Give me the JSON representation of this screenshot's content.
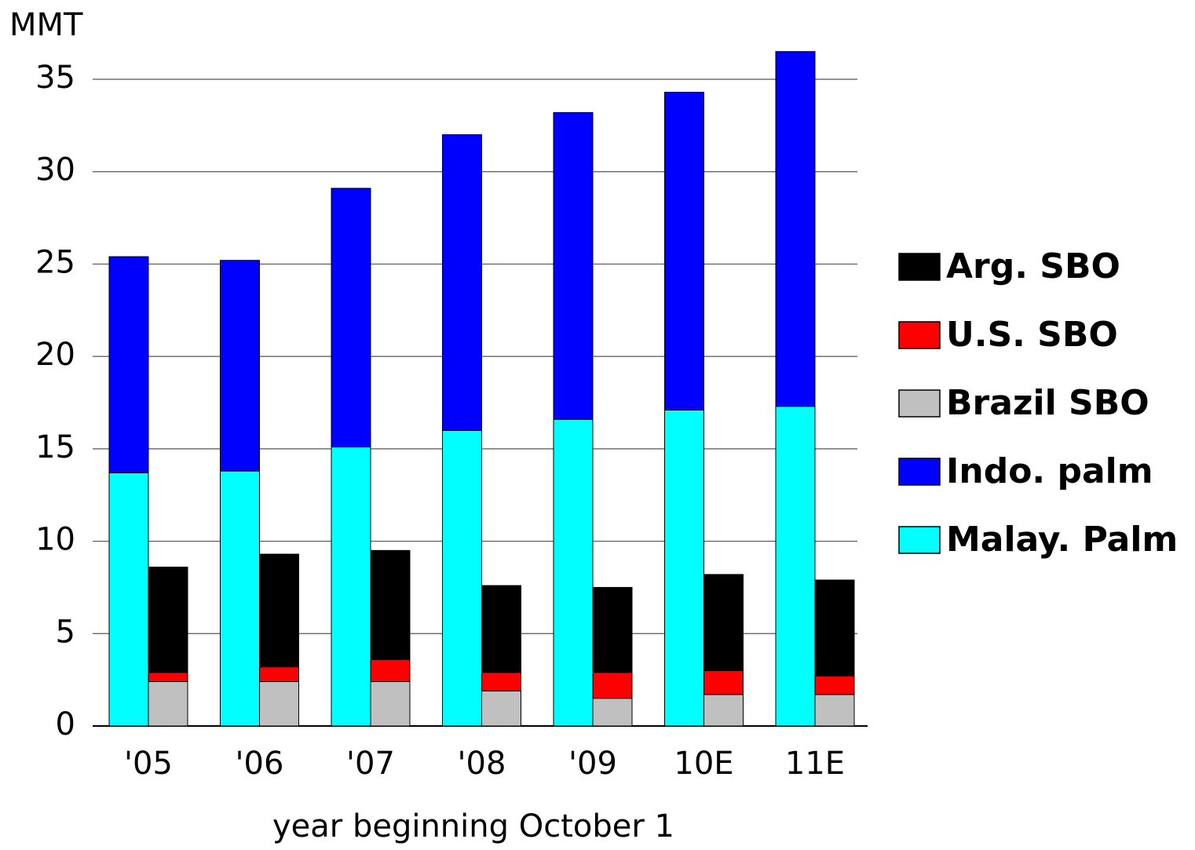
{
  "chart_data": {
    "type": "bar",
    "y_label": "MMT",
    "x_label": "year beginning October 1",
    "categories": [
      "'05",
      "'06",
      "'07",
      "'08",
      "'09",
      "10E",
      "11E"
    ],
    "series": [
      {
        "name": "Arg. SBO",
        "color": "#000000",
        "values": [
          5.7,
          6.1,
          5.9,
          4.7,
          4.6,
          5.2,
          5.2
        ]
      },
      {
        "name": "U.S. SBO",
        "color": "#ff0000",
        "values": [
          0.5,
          0.8,
          1.2,
          1.0,
          1.4,
          1.3,
          1.0
        ]
      },
      {
        "name": "Brazil SBO",
        "color": "#c0c0c0",
        "values": [
          2.4,
          2.4,
          2.4,
          1.9,
          1.5,
          1.7,
          1.7
        ]
      },
      {
        "name": "Indo. palm",
        "color": "#0000ff",
        "values": [
          11.7,
          11.4,
          14.0,
          16.0,
          16.6,
          17.2,
          19.2
        ]
      },
      {
        "name": "Malay. Palm",
        "color": "#00ffff",
        "values": [
          13.7,
          13.8,
          15.1,
          16.0,
          16.6,
          17.1,
          17.3
        ]
      }
    ],
    "ylim": [
      0,
      35
    ],
    "yticks": [
      0,
      5,
      10,
      15,
      20,
      25,
      30,
      35
    ],
    "grid": true,
    "legend": "right"
  }
}
